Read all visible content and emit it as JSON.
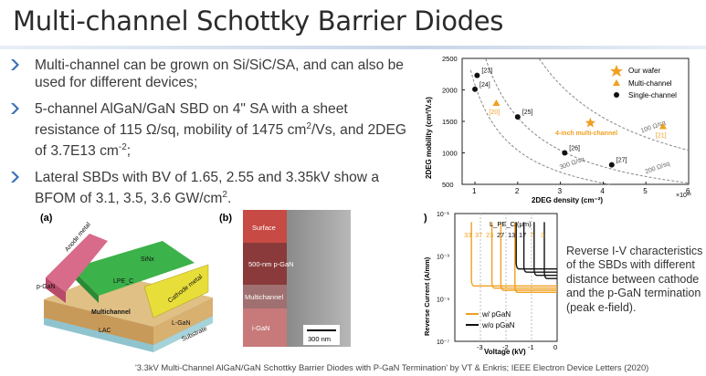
{
  "slide": {
    "title": "Multi-channel Schottky Barrier Diodes",
    "bullets": [
      {
        "text": "Multi-channel can be grown on Si/SiC/SA, and can also be used for different devices;"
      },
      {
        "pre": "5-channel AlGaN/GaN SBD on 4\" SA with a sheet resistance of 115 Ω/sq, mobility of 1475 cm",
        "sup1": "2",
        "mid": "/Vs, and 2DEG of 3.7E13 cm",
        "sup2": "-2",
        "post": ";"
      },
      {
        "pre": "Lateral SBDs with BV of 1.65, 2.55 and 3.35kV show a BFOM of 3.1, 3.5, 3.6 GW/cm",
        "sup1": "2",
        "post": "."
      }
    ],
    "footer": "'3.3kV Multi-Channel AlGaN/GaN Schottky Barrier Diodes with P-GaN Termination' by VT & Enkris; IEEE Electron Device Letters (2020)",
    "caption": "Reverse I-V characteristics of the SBDs with different distance between cathode and the p-GaN termination (peak e-field).",
    "accent_color": "#f0a020",
    "bullet_icon": "arrow-chevron-icon"
  },
  "figure_a": {
    "label": "(a)",
    "labels": [
      "Anode metal",
      "SiNx",
      "Cathode metal",
      "LPE_C",
      "p-GaN",
      "Multichannel",
      "LAC",
      "L-GaN",
      "Substrate"
    ]
  },
  "figure_b": {
    "label": "(b)",
    "layers": [
      "Surface",
      "500-nm p-GaN",
      "Multichannel",
      "i-GaN"
    ],
    "scalebar": "300 nm"
  },
  "chart_data": [
    {
      "type": "scatter",
      "title": "",
      "xlabel": "2DEG density (cm⁻²)",
      "xlabel_multiplier": "×10¹³",
      "ylabel": "2DEG mobility (cm²/V.s)",
      "xlim": [
        0.7,
        6
      ],
      "ylim": [
        500,
        2500
      ],
      "xticks": [
        "1",
        "2",
        "3",
        "4",
        "5",
        "6"
      ],
      "yticks": [
        "500",
        "1000",
        "1500",
        "2000",
        "2500"
      ],
      "legend_position": "top-right",
      "series": [
        {
          "name": "Our wafer",
          "marker": "star",
          "color": "#f0a020",
          "points": [
            {
              "x": 3.7,
              "y": 1475
            }
          ]
        },
        {
          "name": "Multi-channel",
          "marker": "triangle",
          "color": "#f0a020",
          "points": [
            {
              "x": 1.5,
              "y": 1790,
              "label": "[20]"
            },
            {
              "x": 5.4,
              "y": 1420,
              "label": "[21]"
            }
          ]
        },
        {
          "name": "Single-channel",
          "marker": "circle",
          "color": "#111111",
          "points": [
            {
              "x": 1.05,
              "y": 2230,
              "label": "[23]"
            },
            {
              "x": 1.0,
              "y": 2010,
              "label": "[24]"
            },
            {
              "x": 2.0,
              "y": 1570,
              "label": "[25]"
            },
            {
              "x": 3.1,
              "y": 1000,
              "label": "[26]"
            },
            {
              "x": 4.2,
              "y": 810,
              "label": "[27]"
            }
          ]
        }
      ],
      "curves": [
        {
          "label": "100 Ω/sq",
          "r": 100
        },
        {
          "label": "200 Ω/sq",
          "r": 200
        },
        {
          "label": "300 Ω/sq",
          "r": 300
        }
      ],
      "annotation": "4-inch multi-channel"
    },
    {
      "type": "line",
      "title": "",
      "panel_label": ")",
      "xlabel": "Voltage (kV)",
      "ylabel": "Reverse Current (A/mm)",
      "xlim": [
        -4,
        0
      ],
      "ylim_exponent": [
        -7,
        -1
      ],
      "xticks": [
        "-3",
        "-2",
        "-1",
        "0"
      ],
      "yticks": [
        "10⁻¹",
        "10⁻³",
        "10⁻⁵",
        "10⁻⁷"
      ],
      "legend_title": "L_PE_C (μm)",
      "legend_values": [
        "33",
        "37",
        "23",
        "27",
        "13",
        "17",
        "7",
        "3"
      ],
      "series": [
        {
          "name": "w/ pGaN",
          "color": "#f0a020",
          "breakdowns_kv": [
            -3.35,
            -2.55,
            -2.2,
            -1.65
          ]
        },
        {
          "name": "w/o pGaN",
          "color": "#111111",
          "breakdowns_kv": [
            -1.6,
            -1.3,
            -0.9,
            -0.5
          ]
        }
      ]
    }
  ]
}
